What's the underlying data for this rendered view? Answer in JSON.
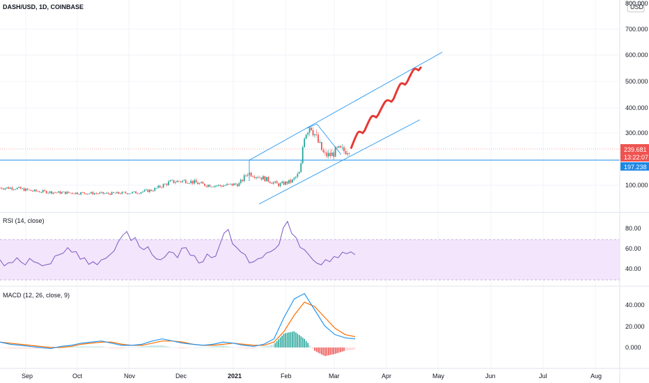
{
  "header": {
    "symbol_title": "DASH/USD, 1D, COINBASE",
    "scale_button": "USD"
  },
  "price_axis": {
    "ticks": [
      "800.000",
      "700.000",
      "600.000",
      "500.000",
      "400.000",
      "300.000",
      "100.000"
    ],
    "last_price": "239.681",
    "countdown": "13:22:07",
    "level_value": "197.238"
  },
  "rsi_pane": {
    "title": "RSI (14, close)",
    "ticks": [
      "80.00",
      "60.00",
      "40.00"
    ]
  },
  "macd_pane": {
    "title": "MACD (12, 26, close, 9)",
    "ticks": [
      "40.000",
      "20.000",
      "0.000"
    ]
  },
  "time_axis": {
    "labels": [
      "Sep",
      "Oct",
      "Nov",
      "Dec",
      "2021",
      "Feb",
      "Mar",
      "Apr",
      "May",
      "Jun",
      "Jul",
      "Aug"
    ]
  },
  "colors": {
    "up": "#26a69a",
    "down": "#ef5350",
    "drawing_blue": "#2196f3",
    "projection_red": "#e53935",
    "rsi_line": "#7e57c2",
    "rsi_band": "#f3e5fb",
    "macd_line": "#2196f3",
    "signal_line": "#ff6d00",
    "level_badge": "#1e88e5"
  },
  "chart_data": {
    "type": "candlestick",
    "title": "DASH/USD, 1D, COINBASE",
    "x_unit": "date",
    "price_ylim": [
      20,
      840
    ],
    "price_series_approx": [
      {
        "x": "2020-08-25",
        "close": 90
      },
      {
        "x": "2020-09-05",
        "close": 78
      },
      {
        "x": "2020-09-20",
        "close": 72
      },
      {
        "x": "2020-10-05",
        "close": 70
      },
      {
        "x": "2020-10-20",
        "close": 68
      },
      {
        "x": "2020-11-05",
        "close": 72
      },
      {
        "x": "2020-11-15",
        "close": 82
      },
      {
        "x": "2020-11-25",
        "close": 112
      },
      {
        "x": "2020-12-05",
        "close": 118
      },
      {
        "x": "2020-12-15",
        "close": 102
      },
      {
        "x": "2020-12-25",
        "close": 98
      },
      {
        "x": "2021-01-05",
        "close": 105
      },
      {
        "x": "2021-01-10",
        "close": 148
      },
      {
        "x": "2021-01-20",
        "close": 125
      },
      {
        "x": "2021-01-28",
        "close": 102
      },
      {
        "x": "2021-02-05",
        "close": 115
      },
      {
        "x": "2021-02-10",
        "close": 150
      },
      {
        "x": "2021-02-12",
        "close": 290
      },
      {
        "x": "2021-02-16",
        "close": 335
      },
      {
        "x": "2021-02-20",
        "close": 270
      },
      {
        "x": "2021-02-24",
        "close": 215
      },
      {
        "x": "2021-02-28",
        "close": 215
      },
      {
        "x": "2021-03-04",
        "close": 235
      },
      {
        "x": "2021-03-08",
        "close": 231
      },
      {
        "x": "2021-03-11",
        "close": 239.681
      }
    ],
    "horizontal_level": 197.238,
    "projection_path": [
      {
        "x": "2021-03-12",
        "y": 243
      },
      {
        "x": "2021-03-20",
        "y": 310
      },
      {
        "x": "2021-03-28",
        "y": 370
      },
      {
        "x": "2021-04-06",
        "y": 430
      },
      {
        "x": "2021-04-14",
        "y": 495
      },
      {
        "x": "2021-04-22",
        "y": 550
      }
    ],
    "rsi": {
      "ylim": [
        25,
        95
      ],
      "band": [
        30,
        70
      ],
      "values": [
        50,
        47,
        52,
        45,
        48,
        44,
        46,
        55,
        62,
        58,
        52,
        48,
        50,
        55,
        68,
        78,
        72,
        60,
        55,
        50,
        58,
        52,
        62,
        54,
        48,
        52,
        65,
        80,
        62,
        55,
        48,
        52,
        58,
        65,
        88,
        72,
        60,
        50,
        45,
        48,
        52,
        56,
        55
      ]
    },
    "macd": {
      "ylim": [
        -20,
        55
      ],
      "macd_values": [
        5,
        3,
        2,
        1,
        0,
        -1,
        1,
        2,
        4,
        5,
        6,
        4,
        2,
        2,
        3,
        6,
        8,
        6,
        4,
        3,
        2,
        3,
        5,
        4,
        2,
        1,
        3,
        8,
        28,
        45,
        50,
        35,
        20,
        12,
        9,
        8
      ],
      "signal_values": [
        5,
        4,
        3,
        2,
        1,
        0,
        0,
        1,
        3,
        4,
        5,
        5,
        3,
        2,
        2,
        4,
        6,
        6,
        5,
        3,
        2,
        2,
        3,
        4,
        3,
        2,
        2,
        5,
        15,
        30,
        42,
        38,
        28,
        18,
        12,
        10
      ]
    }
  }
}
